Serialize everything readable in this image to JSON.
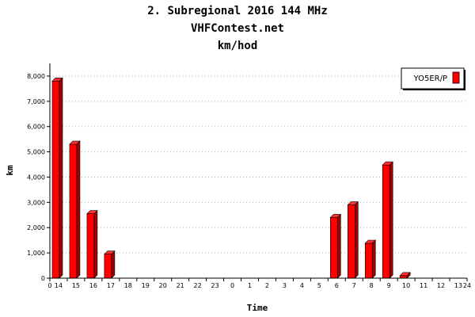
{
  "header": {
    "title": "2. Subregional 2016 144 MHz",
    "site": "VHFContest.net",
    "subtitle": "km/hod"
  },
  "chart_data": {
    "type": "bar",
    "xlabel": "Time",
    "ylabel": "km",
    "ylim": [
      0,
      8500
    ],
    "y_ticks": [
      0,
      1000,
      2000,
      3000,
      4000,
      5000,
      6000,
      7000,
      8000
    ],
    "y_tick_labels": [
      "0",
      "1,000",
      "2,000",
      "3,000",
      "4,000",
      "5,000",
      "6,000",
      "7,000",
      "8,000"
    ],
    "x_edge_labels": [
      "0",
      "24"
    ],
    "categories": [
      "14",
      "15",
      "16",
      "17",
      "18",
      "19",
      "20",
      "21",
      "22",
      "23",
      "0",
      "1",
      "2",
      "3",
      "4",
      "5",
      "6",
      "7",
      "8",
      "9",
      "10",
      "11",
      "12",
      "13"
    ],
    "series": [
      {
        "name": "YO5ER/P",
        "color": "#ff0000",
        "values": [
          7800,
          5300,
          2550,
          950,
          0,
          0,
          0,
          0,
          0,
          0,
          0,
          0,
          0,
          0,
          0,
          0,
          2400,
          2900,
          1380,
          4480,
          100,
          0,
          0,
          0
        ]
      }
    ],
    "grid": true,
    "legend": "top-right"
  }
}
